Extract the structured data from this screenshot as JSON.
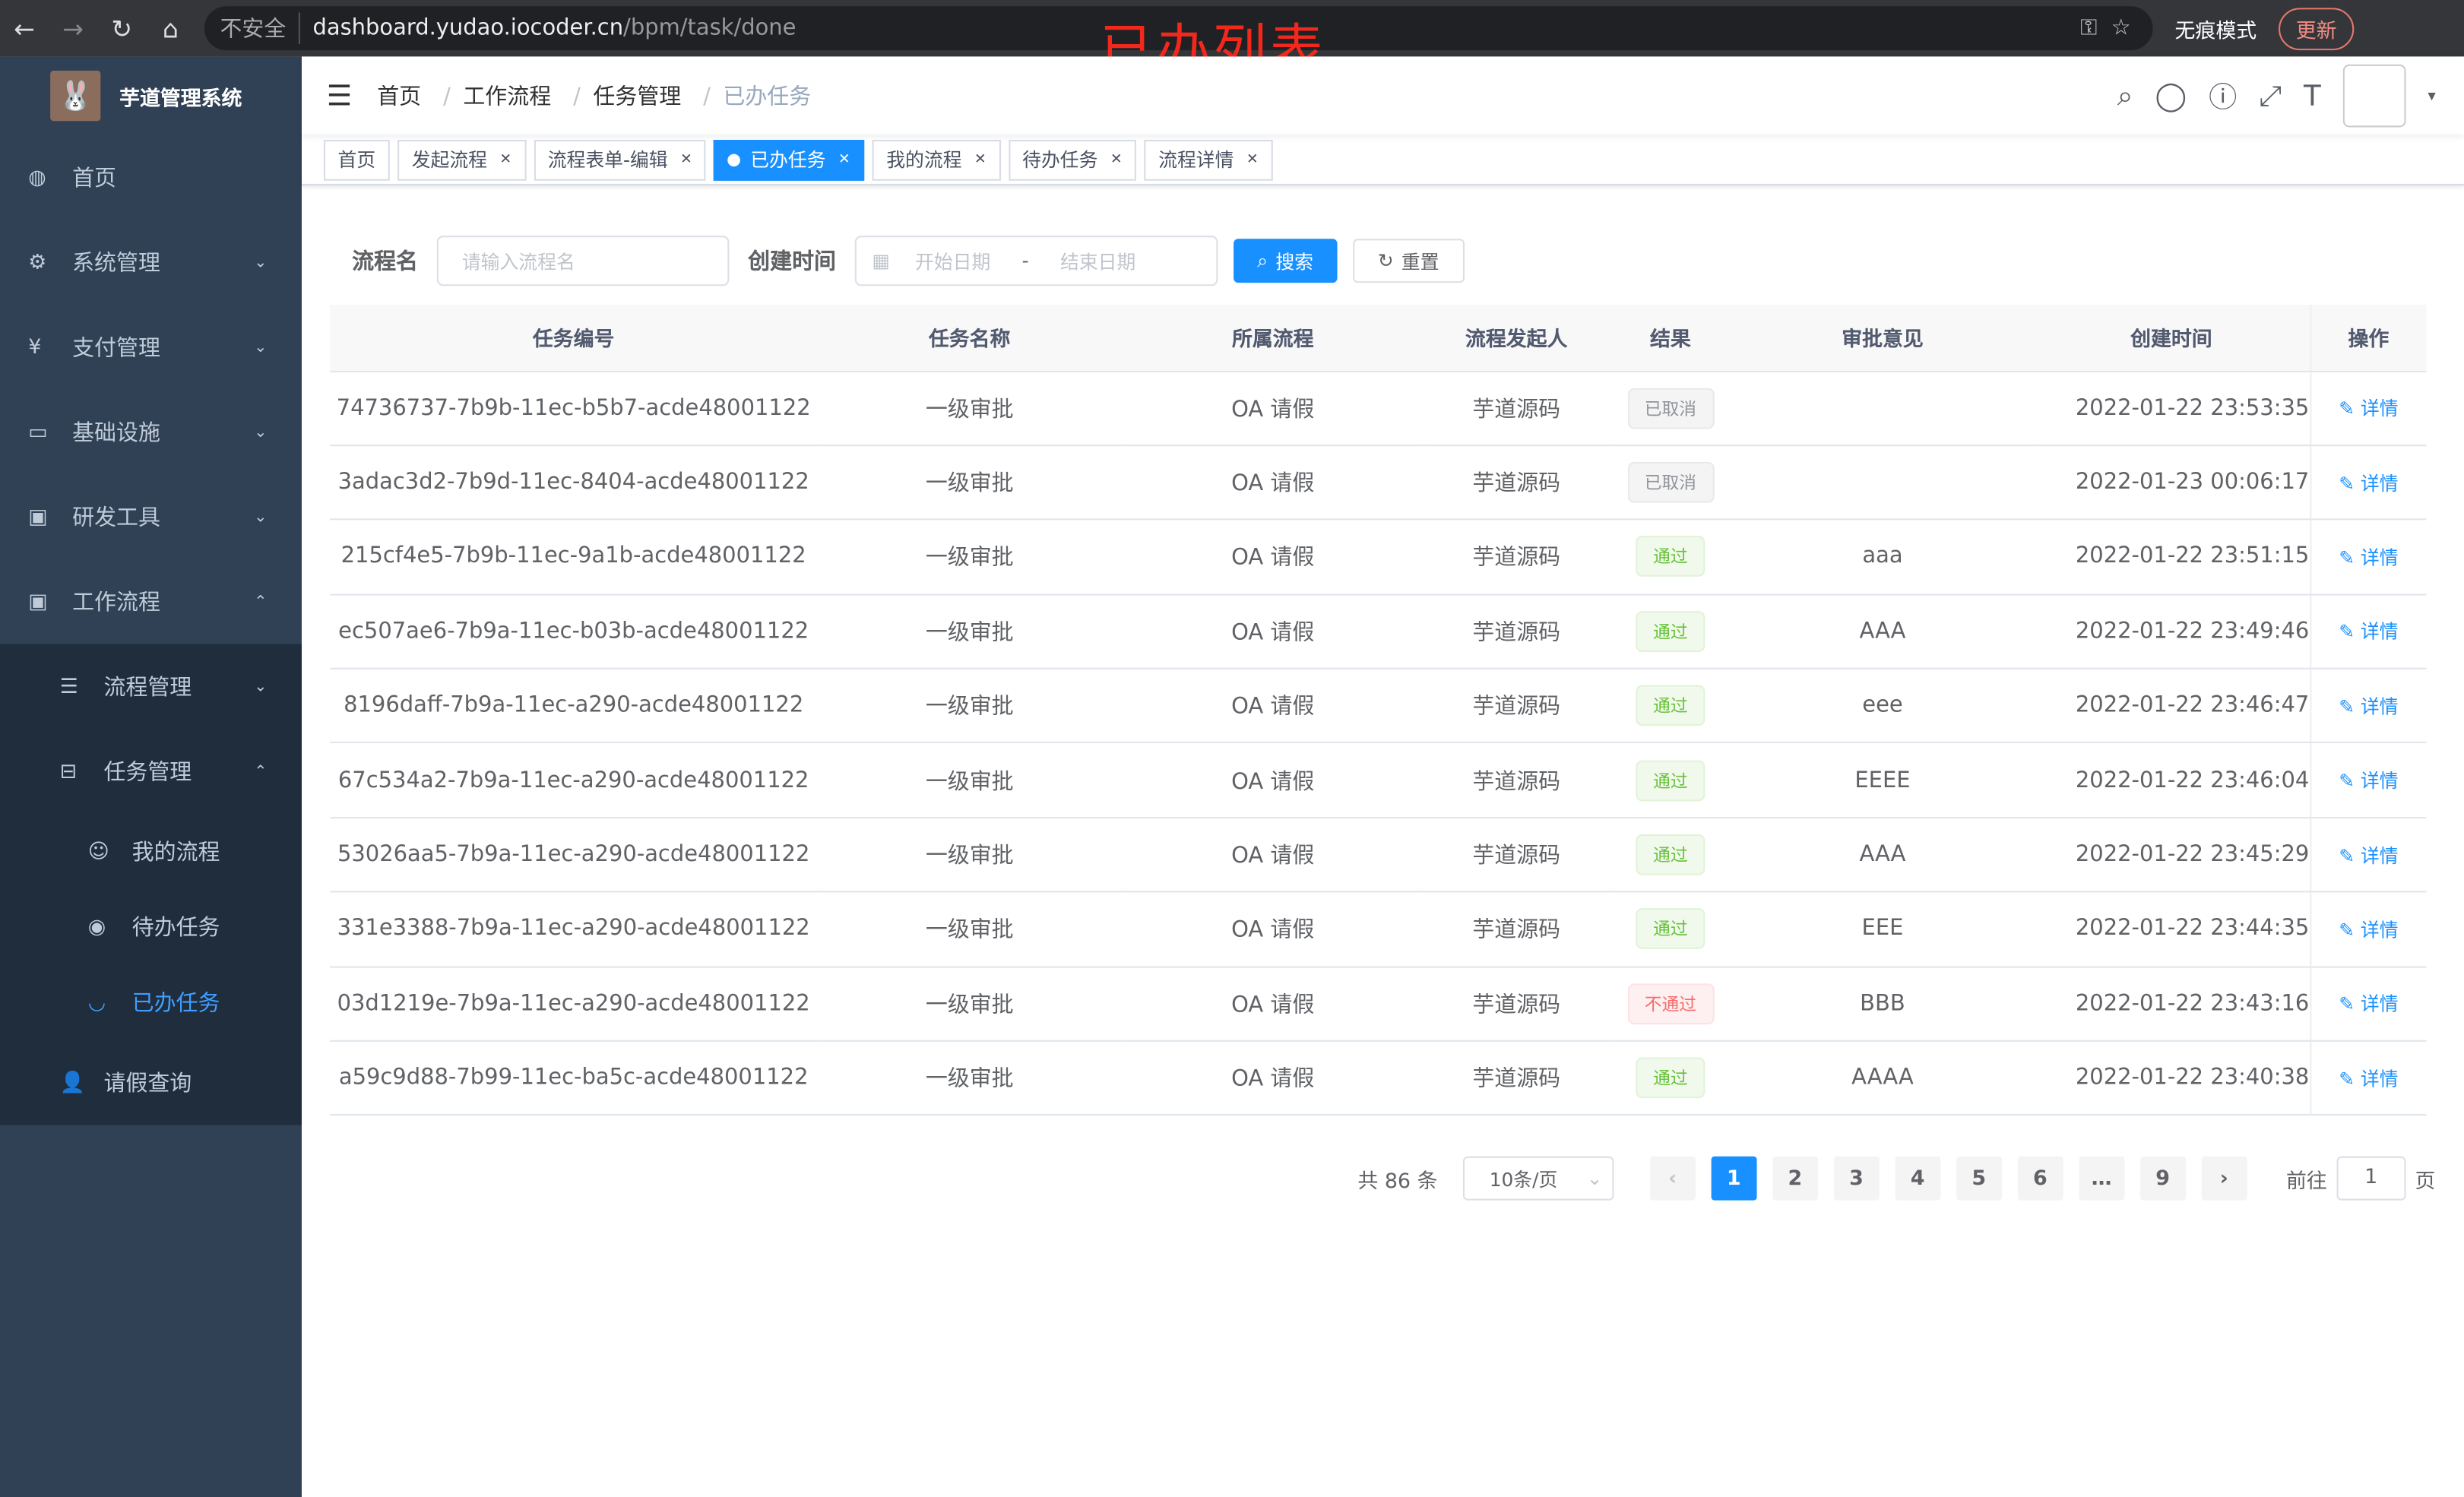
{
  "browser": {
    "insecure": "不安全",
    "host": "dashboard.yudao.iocoder.cn",
    "path": "/bpm/task/done",
    "incognito": "无痕模式",
    "update": "更新"
  },
  "annotation": "已办列表",
  "sidebar": {
    "title": "芋道管理系统",
    "items": [
      {
        "label": "首页"
      },
      {
        "label": "系统管理"
      },
      {
        "label": "支付管理"
      },
      {
        "label": "基础设施"
      },
      {
        "label": "研发工具"
      },
      {
        "label": "工作流程"
      }
    ],
    "workflow": [
      {
        "label": "流程管理"
      },
      {
        "label": "任务管理"
      }
    ],
    "tasks": [
      {
        "label": "我的流程"
      },
      {
        "label": "待办任务"
      },
      {
        "label": "已办任务"
      }
    ],
    "leave": "请假查询"
  },
  "breadcrumb": [
    "首页",
    "工作流程",
    "任务管理",
    "已办任务"
  ],
  "tags": [
    "首页",
    "发起流程",
    "流程表单-编辑",
    "已办任务",
    "我的流程",
    "待办任务",
    "流程详情"
  ],
  "search": {
    "name_label": "流程名",
    "name_placeholder": "请输入流程名",
    "time_label": "创建时间",
    "start_placeholder": "开始日期",
    "sep": "-",
    "end_placeholder": "结束日期",
    "search": "搜索",
    "reset": "重置"
  },
  "table": {
    "headers": [
      "任务编号",
      "任务名称",
      "所属流程",
      "流程发起人",
      "结果",
      "审批意见",
      "创建时间",
      "操作"
    ],
    "rows": [
      [
        "74736737-7b9b-11ec-b5b7-acde48001122",
        "一级审批",
        "OA 请假",
        "芋道源码",
        "已取消",
        "",
        "2022-01-22 23:53:35",
        "详情"
      ],
      [
        "3adac3d2-7b9d-11ec-8404-acde48001122",
        "一级审批",
        "OA 请假",
        "芋道源码",
        "已取消",
        "",
        "2022-01-23 00:06:17",
        "详情"
      ],
      [
        "215cf4e5-7b9b-11ec-9a1b-acde48001122",
        "一级审批",
        "OA 请假",
        "芋道源码",
        "通过",
        "aaa",
        "2022-01-22 23:51:15",
        "详情"
      ],
      [
        "ec507ae6-7b9a-11ec-b03b-acde48001122",
        "一级审批",
        "OA 请假",
        "芋道源码",
        "通过",
        "AAA",
        "2022-01-22 23:49:46",
        "详情"
      ],
      [
        "8196daff-7b9a-11ec-a290-acde48001122",
        "一级审批",
        "OA 请假",
        "芋道源码",
        "通过",
        "eee",
        "2022-01-22 23:46:47",
        "详情"
      ],
      [
        "67c534a2-7b9a-11ec-a290-acde48001122",
        "一级审批",
        "OA 请假",
        "芋道源码",
        "通过",
        "EEEE",
        "2022-01-22 23:46:04",
        "详情"
      ],
      [
        "53026aa5-7b9a-11ec-a290-acde48001122",
        "一级审批",
        "OA 请假",
        "芋道源码",
        "通过",
        "AAA",
        "2022-01-22 23:45:29",
        "详情"
      ],
      [
        "331e3388-7b9a-11ec-a290-acde48001122",
        "一级审批",
        "OA 请假",
        "芋道源码",
        "通过",
        "EEE",
        "2022-01-22 23:44:35",
        "详情"
      ],
      [
        "03d1219e-7b9a-11ec-a290-acde48001122",
        "一级审批",
        "OA 请假",
        "芋道源码",
        "不通过",
        "BBB",
        "2022-01-22 23:43:16",
        "详情"
      ],
      [
        "a59c9d88-7b99-11ec-ba5c-acde48001122",
        "一级审批",
        "OA 请假",
        "芋道源码",
        "通过",
        "AAAA",
        "2022-01-22 23:40:38",
        "详情"
      ]
    ]
  },
  "pagination": {
    "total": "共 86 条",
    "page_size": "10条/页",
    "pages": [
      "1",
      "2",
      "3",
      "4",
      "5",
      "6",
      "…",
      "9"
    ],
    "current": "1",
    "goto_label": "前往",
    "goto_value": "1",
    "page_suffix": "页"
  }
}
